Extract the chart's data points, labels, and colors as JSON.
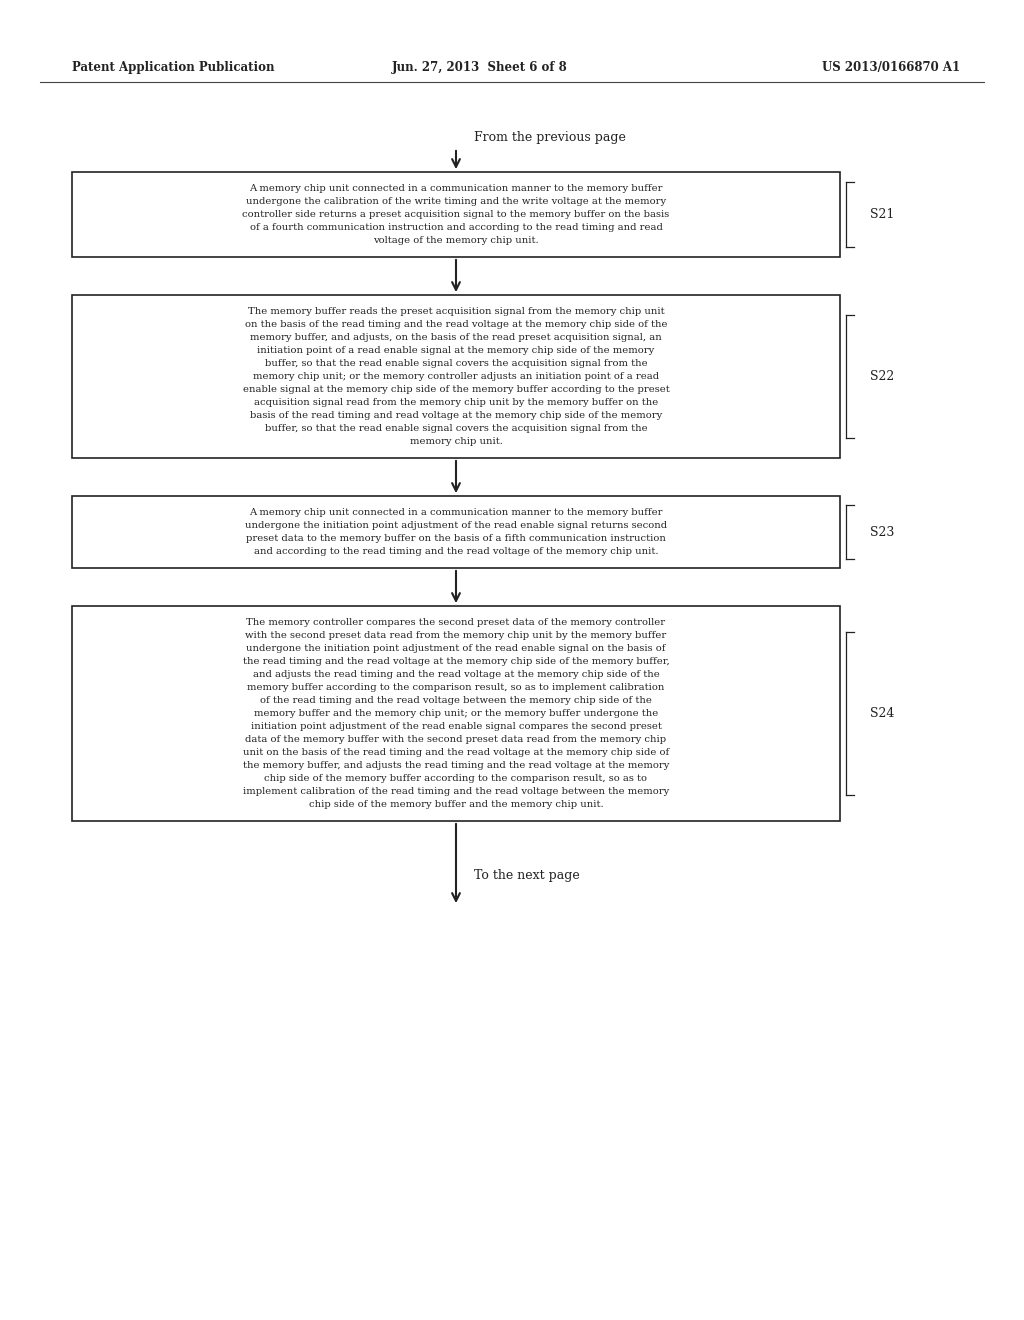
{
  "header_left": "Patent Application Publication",
  "header_center": "Jun. 27, 2013  Sheet 6 of 8",
  "header_right": "US 2013/0166870 A1",
  "from_previous": "From the previous page",
  "to_next": "To the next page",
  "boxes": [
    {
      "id": "S21",
      "label": "S21",
      "text_lines": [
        "A memory chip unit connected in a communication manner to the memory buffer",
        "undergone the calibration of the write timing and the write voltage at the memory",
        "controller side returns a preset acquisition signal to the memory buffer on the basis",
        "of a fourth communication instruction and according to the read timing and read",
        "voltage of the memory chip unit."
      ],
      "align": "center"
    },
    {
      "id": "S22",
      "label": "S22",
      "text_lines": [
        "The memory buffer reads the preset acquisition signal from the memory chip unit",
        "on the basis of the read timing and the read voltage at the memory chip side of the",
        "memory buffer, and adjusts, on the basis of the read preset acquisition signal, an",
        "initiation point of a read enable signal at the memory chip side of the memory",
        "buffer, so that the read enable signal covers the acquisition signal from the",
        "memory chip unit; or the memory controller adjusts an initiation point of a read",
        "enable signal at the memory chip side of the memory buffer according to the preset",
        "acquisition signal read from the memory chip unit by the memory buffer on the",
        "basis of the read timing and read voltage at the memory chip side of the memory",
        "buffer, so that the read enable signal covers the acquisition signal from the",
        "memory chip unit."
      ],
      "align": "center"
    },
    {
      "id": "S23",
      "label": "S23",
      "text_lines": [
        "A memory chip unit connected in a communication manner to the memory buffer",
        "undergone the initiation point adjustment of the read enable signal returns second",
        "preset data to the memory buffer on the basis of a fifth communication instruction",
        "and according to the read timing and the read voltage of the memory chip unit."
      ],
      "align": "center"
    },
    {
      "id": "S24",
      "label": "S24",
      "text_lines": [
        "The memory controller compares the second preset data of the memory controller",
        "with the second preset data read from the memory chip unit by the memory buffer",
        "undergone the initiation point adjustment of the read enable signal on the basis of",
        "the read timing and the read voltage at the memory chip side of the memory buffer,",
        "and adjusts the read timing and the read voltage at the memory chip side of the",
        "memory buffer according to the comparison result, so as to implement calibration",
        "of the read timing and the read voltage between the memory chip side of the",
        "memory buffer and the memory chip unit; or the memory buffer undergone the",
        "initiation point adjustment of the read enable signal compares the second preset",
        "data of the memory buffer with the second preset data read from the memory chip",
        "unit on the basis of the read timing and the read voltage at the memory chip side of",
        "the memory buffer, and adjusts the read timing and the read voltage at the memory",
        "chip side of the memory buffer according to the comparison result, so as to",
        "implement calibration of the read timing and the read voltage between the memory",
        "chip side of the memory buffer and the memory chip unit."
      ],
      "align": "center"
    }
  ],
  "bg_color": "#ffffff",
  "text_color": "#222222",
  "box_edge_color": "#222222",
  "header_font_size": 8.5,
  "body_font_size": 7.2,
  "label_font_size": 9.0
}
